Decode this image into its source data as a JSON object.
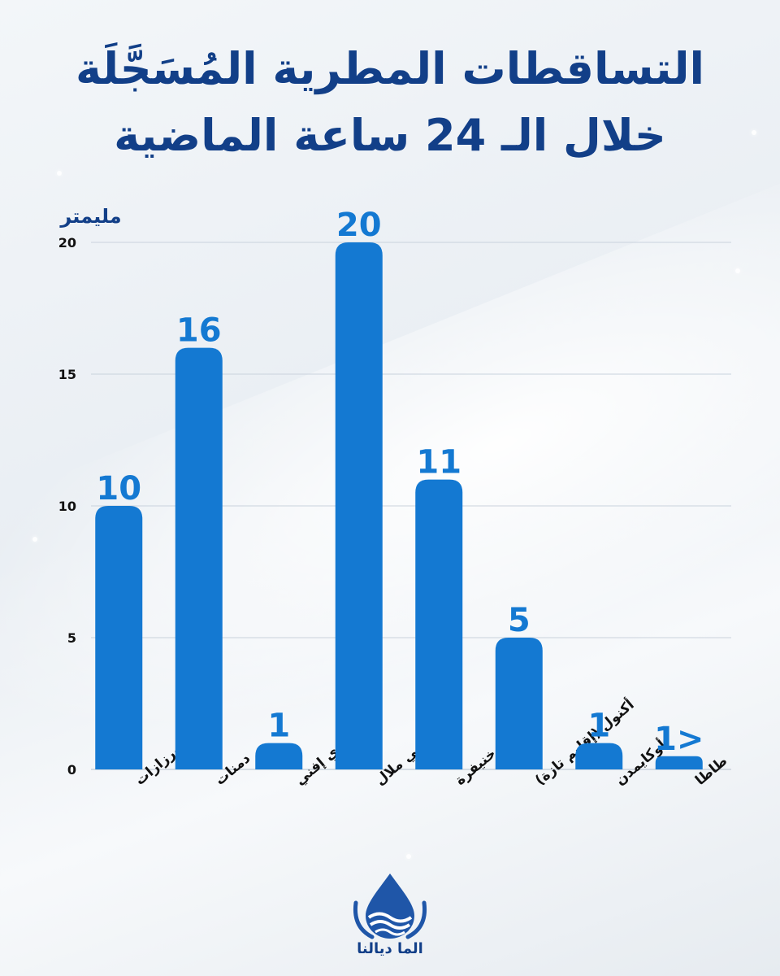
{
  "title_line1": "التساقطات المطرية المُسَجَّلَة",
  "title_line2": "خلال الـ 24 ساعة الماضية",
  "logo_text": "الما ديالنا",
  "colors": {
    "bar": "#1479d2",
    "title": "#123f88",
    "label": "#111111",
    "grid": "#c9d2dc"
  },
  "chart_data": {
    "type": "bar",
    "ylabel": "مليمتر",
    "ylim": [
      0,
      20
    ],
    "yticks": [
      "0",
      "5",
      "10",
      "15",
      "20"
    ],
    "categories": [
      "ورزازات",
      "دمنات",
      "سيدي إفني",
      "بني ملال",
      "خنيفرة",
      "أكنول (إقليم تازة)",
      "أوكايمدن",
      "طاطا"
    ],
    "values": [
      10,
      16,
      1,
      20,
      11,
      5,
      1,
      0.5
    ],
    "data_labels": [
      "10",
      "16",
      "1",
      "20",
      "11",
      "5",
      "1",
      "1>"
    ],
    "grid": true,
    "legend": "none"
  }
}
